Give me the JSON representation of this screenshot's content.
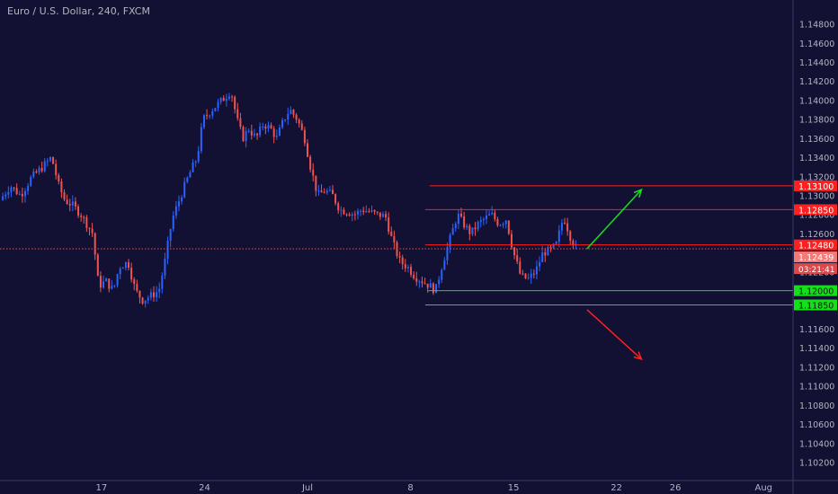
{
  "title": "Euro / U.S. Dollar, 240, FXCM",
  "colors": {
    "background": "#131133",
    "up": "#2962ff",
    "down": "#ef5350",
    "axis_text": "#b2b5be",
    "red_level": "#ff1f1f",
    "green_level": "#14e01a"
  },
  "chart_data": {
    "type": "candlestick",
    "title": "Euro / U.S. Dollar, 240, FXCM",
    "ylim": [
      1.1012,
      1.149
    ],
    "y_ticks": [
      "1.14800",
      "1.14600",
      "1.14400",
      "1.14200",
      "1.14000",
      "1.13800",
      "1.13600",
      "1.13400",
      "1.13200",
      "1.13000",
      "1.12800",
      "1.12600",
      "1.12200",
      "1.11600",
      "1.11400",
      "1.11200",
      "1.11000",
      "1.10800",
      "1.10600",
      "1.10400",
      "1.10200"
    ],
    "x_ticks": [
      {
        "label": "17",
        "day": 17
      },
      {
        "label": "24",
        "day": 24
      },
      {
        "label": "Jul",
        "day": 31
      },
      {
        "label": "8",
        "day": 38
      },
      {
        "label": "15",
        "day": 45
      },
      {
        "label": "22",
        "day": 52
      },
      {
        "label": "26",
        "day": 56
      },
      {
        "label": "Aug",
        "day": 62
      }
    ],
    "x_range_days": [
      10.1,
      64.0
    ],
    "last_candle_day": 49.3,
    "current_price": {
      "label": "1.12439",
      "value": 1.12439
    },
    "countdown": "03:21:41",
    "horizontal_lines": [
      {
        "label": "1.13100",
        "value": 1.131,
        "color": "red",
        "start_day": 39.3
      },
      {
        "label": "1.12850",
        "value": 1.1285,
        "color": "red",
        "start_day": 39.0
      },
      {
        "label": "1.12480",
        "value": 1.1248,
        "color": "red",
        "start_day": 39.0
      },
      {
        "label": "1.12000",
        "value": 1.12,
        "color": "green",
        "start_day": 39.2
      },
      {
        "label": "1.11850",
        "value": 1.1185,
        "color": "green",
        "start_day": 39.0
      }
    ],
    "arrows": [
      {
        "color": "green",
        "from": {
          "day": 50.0,
          "price": 1.1244
        },
        "to": {
          "day": 53.7,
          "price": 1.1306
        }
      },
      {
        "color": "red",
        "from": {
          "day": 50.0,
          "price": 1.118
        },
        "to": {
          "day": 53.7,
          "price": 1.1128
        }
      }
    ],
    "path_points": [
      [
        10.1,
        1.1295
      ],
      [
        10.8,
        1.131
      ],
      [
        11.5,
        1.13
      ],
      [
        12.2,
        1.1318
      ],
      [
        13.0,
        1.133
      ],
      [
        13.6,
        1.134
      ],
      [
        14.1,
        1.131
      ],
      [
        14.5,
        1.1295
      ],
      [
        15.0,
        1.129
      ],
      [
        15.6,
        1.128
      ],
      [
        16.0,
        1.127
      ],
      [
        16.4,
        1.126
      ],
      [
        16.8,
        1.1205
      ],
      [
        17.3,
        1.121
      ],
      [
        17.8,
        1.12
      ],
      [
        18.2,
        1.1225
      ],
      [
        18.8,
        1.123
      ],
      [
        19.3,
        1.12
      ],
      [
        19.8,
        1.119
      ],
      [
        20.4,
        1.1195
      ],
      [
        20.9,
        1.12
      ],
      [
        21.3,
        1.123
      ],
      [
        21.8,
        1.1275
      ],
      [
        22.4,
        1.13
      ],
      [
        22.9,
        1.132
      ],
      [
        23.5,
        1.134
      ],
      [
        23.9,
        1.138
      ],
      [
        24.5,
        1.139
      ],
      [
        25.2,
        1.14
      ],
      [
        25.8,
        1.141
      ],
      [
        26.2,
        1.138
      ],
      [
        26.6,
        1.136
      ],
      [
        27.0,
        1.137
      ],
      [
        27.5,
        1.136
      ],
      [
        28.0,
        1.1375
      ],
      [
        28.5,
        1.137
      ],
      [
        28.9,
        1.136
      ],
      [
        29.4,
        1.138
      ],
      [
        29.8,
        1.139
      ],
      [
        30.3,
        1.138
      ],
      [
        30.8,
        1.136
      ],
      [
        31.2,
        1.133
      ],
      [
        31.7,
        1.13
      ],
      [
        32.2,
        1.1305
      ],
      [
        32.7,
        1.13
      ],
      [
        33.2,
        1.1285
      ],
      [
        33.7,
        1.1283
      ],
      [
        34.2,
        1.128
      ],
      [
        34.7,
        1.1285
      ],
      [
        35.2,
        1.1283
      ],
      [
        35.7,
        1.128
      ],
      [
        36.3,
        1.1278
      ],
      [
        36.8,
        1.125
      ],
      [
        37.3,
        1.123
      ],
      [
        37.8,
        1.1225
      ],
      [
        38.3,
        1.1215
      ],
      [
        38.8,
        1.121
      ],
      [
        39.3,
        1.1205
      ],
      [
        39.7,
        1.12
      ],
      [
        40.2,
        1.123
      ],
      [
        40.7,
        1.1255
      ],
      [
        41.2,
        1.128
      ],
      [
        41.6,
        1.127
      ],
      [
        42.1,
        1.126
      ],
      [
        42.6,
        1.127
      ],
      [
        43.0,
        1.1275
      ],
      [
        43.5,
        1.128
      ],
      [
        44.0,
        1.127
      ],
      [
        44.5,
        1.1275
      ],
      [
        45.0,
        1.124
      ],
      [
        45.5,
        1.1215
      ],
      [
        46.0,
        1.1212
      ],
      [
        46.5,
        1.122
      ],
      [
        47.0,
        1.124
      ],
      [
        47.5,
        1.1242
      ],
      [
        47.9,
        1.1248
      ],
      [
        48.4,
        1.1278
      ],
      [
        48.9,
        1.1255
      ],
      [
        49.3,
        1.12439
      ]
    ]
  }
}
